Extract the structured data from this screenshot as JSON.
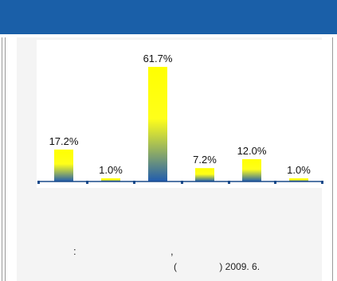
{
  "colors": {
    "title_bar": "#1a5fa8",
    "bar_top": "#ffff00",
    "bar_bottom": "#1f5bb0",
    "axis": "#1a4a8a"
  },
  "source": {
    "colon": ":",
    "comma": ",",
    "line": "(                ) 2009. 6."
  },
  "chart_data": {
    "type": "bar",
    "categories": [
      "",
      "",
      "",
      "",
      "",
      ""
    ],
    "values": [
      17.2,
      1.0,
      61.7,
      7.2,
      12.0,
      1.0
    ],
    "data_labels": [
      "17.2%",
      "1.0%",
      "61.7%",
      "7.2%",
      "12.0%",
      "1.0%"
    ],
    "ylim": [
      0,
      70
    ],
    "grid": false,
    "legend": "none",
    "fill": "vertical gradient yellow (top) to blue (bottom)"
  }
}
